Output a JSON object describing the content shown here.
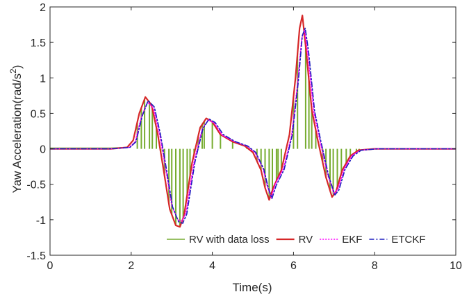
{
  "chart_data": {
    "type": "line",
    "title": "",
    "xlabel": "Time(s)",
    "ylabel": "Yaw Acceleration(rad/s",
    "ylabel_sup": "2",
    "ylabel_close": ")",
    "xlim": [
      0,
      10
    ],
    "ylim": [
      -1.5,
      2
    ],
    "xticks": [
      0,
      2,
      4,
      6,
      8,
      10
    ],
    "xtick_labels": [
      "0",
      "2",
      "4",
      "6",
      "8",
      "10"
    ],
    "yticks": [
      -1.5,
      -1,
      -0.5,
      0,
      0.5,
      1,
      1.5,
      2
    ],
    "ytick_labels": [
      "-1.5",
      "-1",
      "-0.5",
      "0",
      "0.5",
      "1",
      "1.5",
      "2"
    ],
    "legend_position": "bottom-right",
    "data_loss_times": [
      2.15,
      2.25,
      2.33,
      2.45,
      2.52,
      2.62,
      2.73,
      2.82,
      2.93,
      3.0,
      3.1,
      3.2,
      3.28,
      3.38,
      3.45,
      3.55,
      3.65,
      3.75,
      3.8,
      4.0,
      4.2,
      4.5,
      4.85,
      5.1,
      5.2,
      5.3,
      5.4,
      5.48,
      5.58,
      5.62,
      5.7,
      6.0,
      6.1,
      6.3,
      6.38,
      6.45,
      6.55,
      6.72,
      6.8,
      6.9,
      6.98,
      7.08,
      7.18,
      7.3,
      7.4,
      7.55,
      7.62
    ],
    "series": [
      {
        "name": "RV with data loss",
        "color": "#77ac30",
        "style": "solid",
        "x": [
          0,
          1.5,
          1.9,
          2.05,
          2.2,
          2.35,
          2.5,
          2.65,
          2.8,
          2.95,
          3.1,
          3.2,
          3.3,
          3.5,
          3.7,
          3.85,
          4.0,
          4.2,
          4.5,
          4.8,
          5.0,
          5.2,
          5.3,
          5.4,
          5.5,
          5.7,
          5.9,
          6.05,
          6.15,
          6.22,
          6.3,
          6.45,
          6.6,
          6.8,
          6.95,
          7.05,
          7.2,
          7.4,
          7.6,
          8.0,
          10
        ],
        "y": [
          0.01,
          0.01,
          0.02,
          0.12,
          0.5,
          0.73,
          0.62,
          0.22,
          -0.3,
          -0.85,
          -1.08,
          -1.1,
          -0.95,
          -0.2,
          0.3,
          0.43,
          0.38,
          0.2,
          0.1,
          0.04,
          -0.05,
          -0.3,
          -0.55,
          -0.72,
          -0.55,
          -0.3,
          0.2,
          1.0,
          1.7,
          1.88,
          1.45,
          0.55,
          0.12,
          -0.4,
          -0.68,
          -0.6,
          -0.3,
          -0.1,
          -0.02,
          0.0,
          0.0
        ]
      },
      {
        "name": "RV",
        "color": "#d62728",
        "style": "solid",
        "x": [
          0,
          1.5,
          1.9,
          2.05,
          2.2,
          2.35,
          2.5,
          2.65,
          2.8,
          2.95,
          3.1,
          3.2,
          3.3,
          3.5,
          3.7,
          3.85,
          4.0,
          4.2,
          4.5,
          4.8,
          5.0,
          5.2,
          5.3,
          5.4,
          5.5,
          5.7,
          5.9,
          6.05,
          6.15,
          6.22,
          6.3,
          6.45,
          6.6,
          6.8,
          6.95,
          7.05,
          7.2,
          7.4,
          7.6,
          8.0,
          10
        ],
        "y": [
          0.0,
          0.0,
          0.02,
          0.12,
          0.5,
          0.73,
          0.62,
          0.22,
          -0.3,
          -0.85,
          -1.08,
          -1.1,
          -0.95,
          -0.2,
          0.3,
          0.43,
          0.38,
          0.2,
          0.1,
          0.04,
          -0.05,
          -0.3,
          -0.55,
          -0.72,
          -0.55,
          -0.3,
          0.2,
          1.0,
          1.7,
          1.88,
          1.45,
          0.55,
          0.12,
          -0.4,
          -0.68,
          -0.6,
          -0.3,
          -0.1,
          -0.02,
          0.0,
          0.0
        ]
      },
      {
        "name": "EKF",
        "color": "#ff00ff",
        "style": "dotted",
        "x": [
          0,
          1.5,
          1.95,
          2.1,
          2.25,
          2.4,
          2.55,
          2.7,
          2.85,
          3.0,
          3.15,
          3.25,
          3.35,
          3.55,
          3.75,
          3.9,
          4.05,
          4.25,
          4.55,
          4.85,
          5.05,
          5.25,
          5.35,
          5.45,
          5.55,
          5.75,
          5.95,
          6.1,
          6.2,
          6.27,
          6.35,
          6.5,
          6.65,
          6.85,
          7.0,
          7.1,
          7.25,
          7.45,
          7.65,
          8.05,
          10
        ],
        "y": [
          0.0,
          0.0,
          0.02,
          0.1,
          0.45,
          0.66,
          0.57,
          0.2,
          -0.28,
          -0.8,
          -1.0,
          -1.02,
          -0.9,
          -0.18,
          0.28,
          0.41,
          0.36,
          0.19,
          0.1,
          0.04,
          -0.05,
          -0.28,
          -0.52,
          -0.69,
          -0.5,
          -0.28,
          0.18,
          0.92,
          1.55,
          1.68,
          1.35,
          0.52,
          0.11,
          -0.38,
          -0.64,
          -0.56,
          -0.28,
          -0.09,
          -0.02,
          0.0,
          0.0
        ]
      },
      {
        "name": "ETCKF",
        "color": "#1f1fbf",
        "style": "dashdot",
        "x": [
          0,
          1.5,
          1.97,
          2.12,
          2.27,
          2.42,
          2.57,
          2.72,
          2.87,
          3.02,
          3.17,
          3.27,
          3.37,
          3.57,
          3.77,
          3.92,
          4.07,
          4.27,
          4.57,
          4.87,
          5.07,
          5.27,
          5.37,
          5.47,
          5.57,
          5.77,
          5.97,
          6.12,
          6.22,
          6.29,
          6.37,
          6.52,
          6.67,
          6.87,
          7.02,
          7.12,
          7.27,
          7.47,
          7.67,
          8.07,
          10
        ],
        "y": [
          0.0,
          0.0,
          0.02,
          0.1,
          0.46,
          0.68,
          0.59,
          0.21,
          -0.29,
          -0.82,
          -1.03,
          -1.05,
          -0.92,
          -0.19,
          0.29,
          0.42,
          0.37,
          0.2,
          0.1,
          0.04,
          -0.05,
          -0.29,
          -0.53,
          -0.7,
          -0.52,
          -0.29,
          0.19,
          0.95,
          1.6,
          1.7,
          1.38,
          0.53,
          0.12,
          -0.39,
          -0.65,
          -0.58,
          -0.29,
          -0.1,
          -0.02,
          0.0,
          0.0
        ]
      }
    ]
  }
}
